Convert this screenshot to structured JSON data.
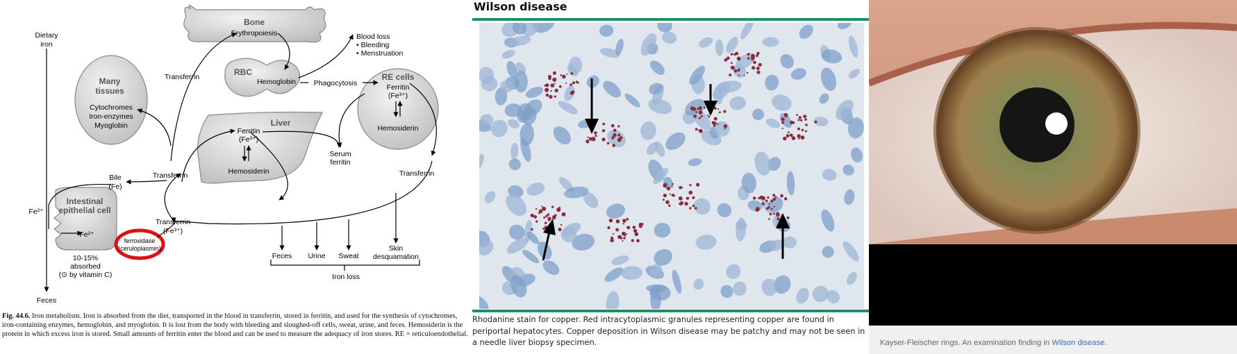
{
  "diagram": {
    "dietary_iron": [
      "Dietary",
      "iron"
    ],
    "bone": "Bone",
    "erythropoiesis": "Erythropoiesis",
    "blood_loss": "Blood loss",
    "bleeding": "• Bleeding",
    "menstruation": "• Menstruation",
    "rbc": "RBC",
    "hemoglobin": "Hemoglobin",
    "phagocytosis": "Phagocytosis",
    "re_cells": "RE cells",
    "re_ferritin": "Ferritin",
    "re_fe3": "(Fe³⁺)",
    "re_hemosiderin": "Hemosiderin",
    "many_tissues": [
      "Many",
      "tissues"
    ],
    "cytochromes": "Cytochromes",
    "iron_enzymes": "Iron-enzymes",
    "myoglobin": "Myoglobin",
    "transferrin": "Transferrin",
    "liver": "Liver",
    "liver_ferritin": "Ferritin",
    "liver_fe3": "(Fe³⁺)",
    "liver_hemosiderin": "Hemosiderin",
    "serum_ferritin": [
      "Serum",
      "ferritin"
    ],
    "bile": [
      "Bile",
      "(Fe)"
    ],
    "fe2_outer": "Fe²⁺",
    "intestinal_cell": [
      "Intestinal",
      "epithelial cell"
    ],
    "fe2_inner": "Fe²⁺",
    "ferroxidase": "ferroxidase",
    "ceruloplasmin": "(ceruloplasmin)",
    "transferrin_fe3": [
      "Transferrin",
      "(Fe³⁺)"
    ],
    "absorbed": [
      "10-15%",
      "absorbed",
      "(⊙ by vitamin C)"
    ],
    "feces_exit": "Feces",
    "loss_feces": "Feces",
    "loss_urine": "Urine",
    "loss_sweat": "Sweat",
    "loss_skin": [
      "Skin",
      "desquamation"
    ],
    "iron_loss": "Iron loss"
  },
  "fig_caption": {
    "label": "Fig. 44.6.",
    "text": " Iron metabolism. Iron is absorbed from the diet, transported in the blood in transferrin, stored in ferritin, and used for the synthesis of cytochromes, iron-containing enzymes, hemoglobin, and myoglobin. It is lost from the body with bleeding and sloughed-off cells, sweat, urine, and feces. Hemosiderin is the protein in which excess iron is stored. Small amounts of ferritin enter the blood and can be used to measure the adequacy of iron stores. RE = reticuloendothelial."
  },
  "wilson": {
    "title": "Wilson disease",
    "caption": "Rhodanine stain for copper. Red intracytoplasmic granules representing copper are found in periportal hepatocytes. Copper deposition in Wilson disease may be patchy and may not be seen in a needle liver biopsy specimen."
  },
  "kf": {
    "caption": "Kayser-Fleischer rings.  An examination finding in ",
    "link": "Wilson disease",
    "end": "."
  },
  "colors": {
    "accent_green": "#1f8f66",
    "ring_red": "#e01010",
    "link_blue": "#3a6fb5"
  }
}
